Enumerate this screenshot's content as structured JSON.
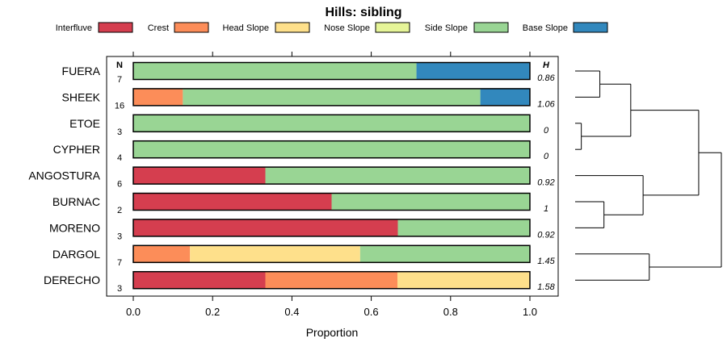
{
  "chart_data": {
    "type": "bar",
    "stacked": true,
    "orientation": "horizontal",
    "title": "Hills: sibling",
    "xlabel": "Proportion",
    "xlim": [
      0,
      1
    ],
    "xticks": [
      "0.0",
      "0.2",
      "0.4",
      "0.6",
      "0.8",
      "1.0"
    ],
    "n_header": "N",
    "h_header": "H",
    "legend": [
      {
        "name": "Interfluve",
        "color": "#D53E4F"
      },
      {
        "name": "Crest",
        "color": "#FC8D59"
      },
      {
        "name": "Head Slope",
        "color": "#FEE08B"
      },
      {
        "name": "Nose Slope",
        "color": "#E6F598"
      },
      {
        "name": "Side Slope",
        "color": "#99D594"
      },
      {
        "name": "Base Slope",
        "color": "#3288BD"
      }
    ],
    "rows": [
      {
        "label": "FUERA",
        "n": "7",
        "h": "0.86",
        "values": [
          0,
          0,
          0,
          0,
          0.714,
          0.286
        ]
      },
      {
        "label": "SHEEK",
        "n": "16",
        "h": "1.06",
        "values": [
          0,
          0.125,
          0,
          0,
          0.75,
          0.125
        ]
      },
      {
        "label": "ETOE",
        "n": "3",
        "h": "0",
        "values": [
          0,
          0,
          0,
          0,
          1.0,
          0
        ]
      },
      {
        "label": "CYPHER",
        "n": "4",
        "h": "0",
        "values": [
          0,
          0,
          0,
          0,
          1.0,
          0
        ]
      },
      {
        "label": "ANGOSTURA",
        "n": "6",
        "h": "0.92",
        "values": [
          0.333,
          0,
          0,
          0,
          0.667,
          0
        ]
      },
      {
        "label": "BURNAC",
        "n": "2",
        "h": "1",
        "values": [
          0.5,
          0,
          0,
          0,
          0.5,
          0
        ]
      },
      {
        "label": "MORENO",
        "n": "3",
        "h": "0.92",
        "values": [
          0.667,
          0,
          0,
          0,
          0.333,
          0
        ]
      },
      {
        "label": "DARGOL",
        "n": "7",
        "h": "1.45",
        "values": [
          0,
          0.143,
          0.429,
          0,
          0.429,
          0
        ]
      },
      {
        "label": "DERECHO",
        "n": "3",
        "h": "1.58",
        "values": [
          0.333,
          0.333,
          0.334,
          0,
          0,
          0
        ]
      }
    ],
    "dendrogram": [
      {
        "a": 0,
        "b": 1,
        "h": 0.12
      },
      {
        "a": 2,
        "b": 3,
        "h": 0.03
      },
      {
        "a": 5,
        "b": 6,
        "h": 0.14
      },
      {
        "a": 4,
        "b": "c2",
        "h": 0.33
      },
      {
        "a": "c0",
        "b": "c1",
        "h": 0.27
      },
      {
        "a": 7,
        "b": 8,
        "h": 0.36
      },
      {
        "a": "c4",
        "b": "c3",
        "h": 0.6
      },
      {
        "a": "c6",
        "b": "c5",
        "h": 0.71
      }
    ]
  }
}
